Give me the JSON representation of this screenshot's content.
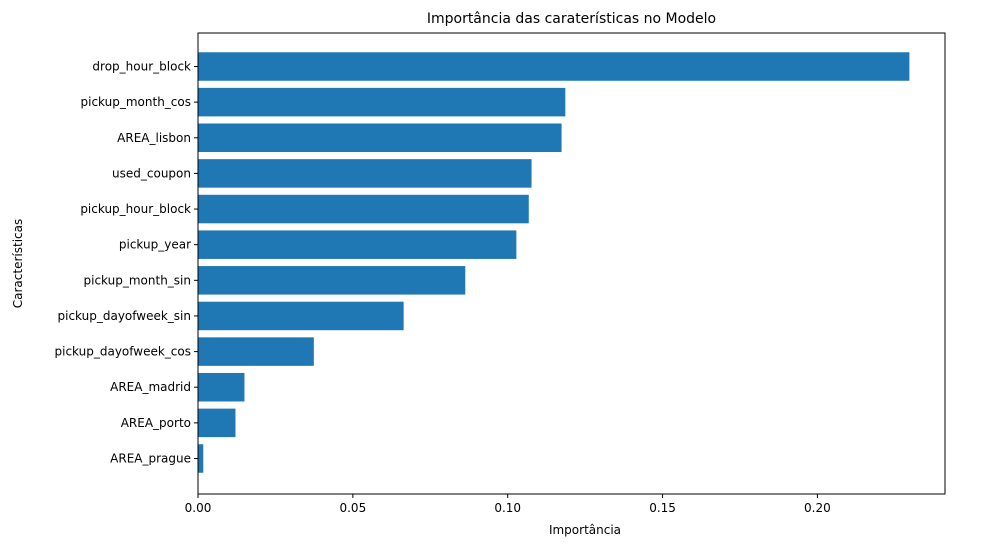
{
  "chart_data": {
    "type": "bar",
    "orientation": "horizontal",
    "title": "Importância das caraterísticas no Modelo",
    "xlabel": "Importância",
    "ylabel": "Características",
    "xlim": [
      0,
      0.2412
    ],
    "xticks": [
      0.0,
      0.05,
      0.1,
      0.15,
      0.2
    ],
    "xtick_labels": [
      "0.00",
      "0.05",
      "0.10",
      "0.15",
      "0.20"
    ],
    "grid": false,
    "bar_color": "#1f77b4",
    "categories": [
      "drop_hour_block",
      "pickup_month_cos",
      "AREA_lisbon",
      "used_coupon",
      "pickup_hour_block",
      "pickup_year",
      "pickup_month_sin",
      "pickup_dayofweek_sin",
      "pickup_dayofweek_cos",
      "AREA_madrid",
      "AREA_porto",
      "AREA_prague"
    ],
    "values": [
      0.2297,
      0.1186,
      0.1174,
      0.1077,
      0.1068,
      0.1028,
      0.0863,
      0.0664,
      0.0374,
      0.015,
      0.0121,
      0.0017
    ]
  }
}
